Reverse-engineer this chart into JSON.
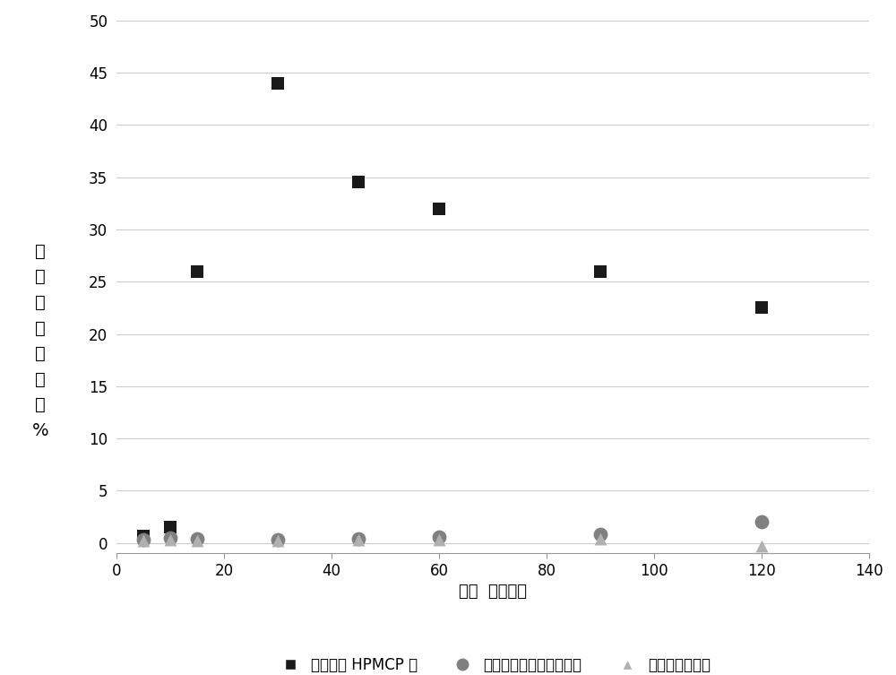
{
  "series1_label": "尼洛替尼 HPMCP 盐",
  "series2_label": "尼洛替尼盐酸盐一水合物",
  "series3_label": "尼洛替尼游离碱",
  "series1_x": [
    5,
    10,
    15,
    30,
    45,
    60,
    90,
    120
  ],
  "series1_y": [
    0.7,
    1.5,
    26.0,
    44.0,
    34.5,
    32.0,
    26.0,
    22.5
  ],
  "series2_x": [
    5,
    10,
    15,
    30,
    45,
    60,
    90,
    120
  ],
  "series2_y": [
    0.3,
    0.5,
    0.4,
    0.3,
    0.4,
    0.6,
    0.8,
    2.0
  ],
  "series3_x": [
    5,
    10,
    15,
    30,
    45,
    60,
    90,
    120
  ],
  "series3_y": [
    0.2,
    0.3,
    0.2,
    0.2,
    0.3,
    0.3,
    0.4,
    -0.3
  ],
  "series1_color": "#1a1a1a",
  "series2_color": "#808080",
  "series3_color": "#b0b0b0",
  "series1_marker": "s",
  "series2_marker": "o",
  "series3_marker": "^",
  "series1_markersize": 100,
  "series2_markersize": 130,
  "series3_markersize": 100,
  "xlabel": "时间  （分钟）",
  "ylabel_chars": [
    "溶",
    "解",
    "的",
    "尼",
    "洛",
    "替",
    "尼",
    "%"
  ],
  "xlim": [
    0,
    140
  ],
  "ylim": [
    -1,
    50
  ],
  "yticks": [
    0,
    5,
    10,
    15,
    20,
    25,
    30,
    35,
    40,
    45,
    50
  ],
  "xticks": [
    0,
    20,
    40,
    60,
    80,
    100,
    120,
    140
  ],
  "background_color": "#ffffff",
  "grid_color": "#cccccc",
  "label_fontsize": 13,
  "tick_fontsize": 12,
  "legend_fontsize": 12,
  "ylabel_fontsize": 14
}
